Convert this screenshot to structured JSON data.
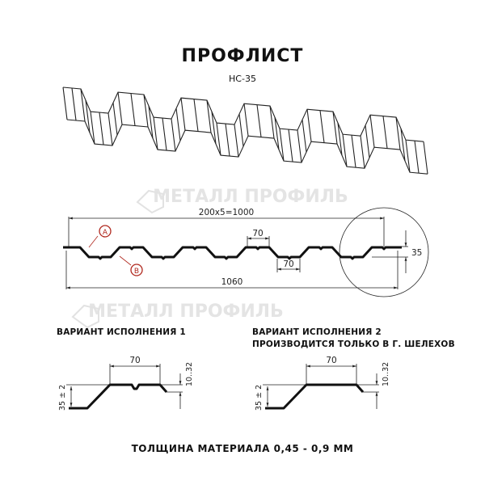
{
  "title": "ПРОФЛИСТ",
  "subtitle": "НС-35",
  "watermark": "МЕТАЛЛ ПРОФИЛЬ",
  "main_drawing": {
    "dim_pitch": "200x5=1000",
    "dim_width": "1060",
    "dim_top": "70",
    "dim_bottom": "70",
    "dim_height": "35",
    "marker_a": "A",
    "marker_b": "B",
    "marker_color": "#b0281e"
  },
  "variant1": {
    "label": "ВАРИАНТ ИСПОЛНЕНИЯ 1",
    "dim_top": "70",
    "dim_height": "35 ± 2",
    "dim_drop": "10..32"
  },
  "variant2": {
    "label_line1": "ВАРИАНТ ИСПОЛНЕНИЯ 2",
    "label_line2": "ПРОИЗВОДИТСЯ ТОЛЬКО В Г. ШЕЛЕХОВ",
    "dim_top": "70",
    "dim_height": "35 ± 2",
    "dim_drop": "10..32"
  },
  "footer": "ТОЛЩИНА МАТЕРИАЛА 0,45 - 0,9 ММ"
}
